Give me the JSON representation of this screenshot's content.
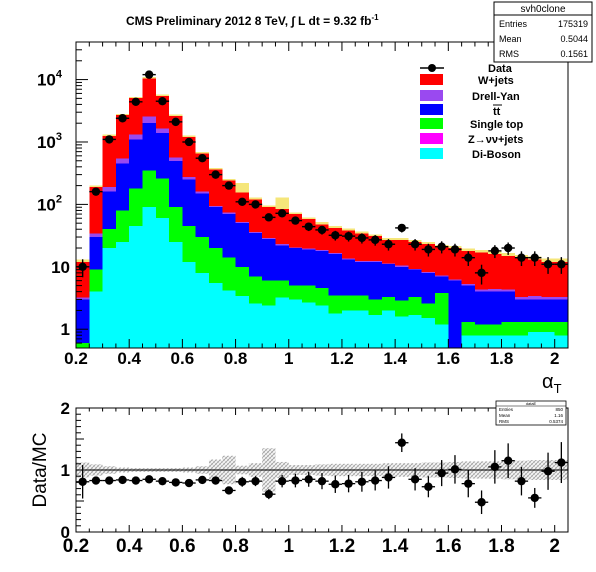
{
  "chart_data": [
    {
      "type": "stacked-histogram",
      "title": "CMS Preliminary 2012 8 TeV, ∫ L dt = 9.32 fb",
      "title_superscript": "-1",
      "xlabel": "α",
      "xlabel_subscript": "T",
      "ylabel": "",
      "xlim": [
        0.2,
        2.05
      ],
      "ylim": [
        0.5,
        40000
      ],
      "yscale": "log",
      "bin_width": 0.05,
      "x_ticks": [
        "0.2",
        "0.4",
        "0.6",
        "0.8",
        "1",
        "1.2",
        "1.4",
        "1.6",
        "1.8",
        "2"
      ],
      "y_ticks": [
        {
          "value": 1,
          "label": "1",
          "sup": ""
        },
        {
          "value": 10,
          "label": "10",
          "sup": ""
        },
        {
          "value": 100,
          "label": "10",
          "sup": "2"
        },
        {
          "value": 1000,
          "label": "10",
          "sup": "3"
        },
        {
          "value": 10000,
          "label": "10",
          "sup": "4"
        }
      ],
      "legend_position": "top-right",
      "legend": [
        {
          "label": "Data",
          "kind": "marker"
        },
        {
          "label": "W+jets",
          "color": "#ff0000"
        },
        {
          "label": "Drell-Yan",
          "color": "#9a49f0"
        },
        {
          "label": "tt",
          "color": "#0000ff"
        },
        {
          "label": "Single top",
          "color": "#00ff00"
        },
        {
          "label": "Z→νν+jets",
          "color": "#ff00ff"
        },
        {
          "label": "Di-Boson",
          "color": "#00ffff"
        }
      ],
      "bin_edges": [
        0.2,
        0.25,
        0.3,
        0.35,
        0.4,
        0.45,
        0.5,
        0.55,
        0.6,
        0.65,
        0.7,
        0.75,
        0.8,
        0.85,
        0.9,
        0.95,
        1.0,
        1.05,
        1.1,
        1.15,
        1.2,
        1.25,
        1.3,
        1.35,
        1.4,
        1.45,
        1.5,
        1.55,
        1.6,
        1.65,
        1.7,
        1.75,
        1.8,
        1.85,
        1.9,
        1.95,
        2.0,
        2.05
      ],
      "stack_cumulative": {
        "diboson": [
          0.5,
          4.0,
          20,
          25,
          45,
          90,
          60,
          25,
          12,
          8,
          5.5,
          4.2,
          3.4,
          2.6,
          2.4,
          3.2,
          3.0,
          2.7,
          2.4,
          1.8,
          2.0,
          2.0,
          1.7,
          2.0,
          1.6,
          1.7,
          1.5,
          1.2,
          0.5,
          0.8,
          0.8,
          0.8,
          0.8,
          0.8,
          0.9,
          0.9,
          0.8
        ],
        "singletop": [
          0.6,
          9,
          40,
          80,
          180,
          350,
          260,
          90,
          45,
          30,
          20,
          14,
          10,
          7,
          6,
          6,
          5,
          5,
          4.6,
          3.5,
          3.5,
          3.5,
          3.0,
          3.3,
          2.9,
          3.3,
          2.6,
          3.8,
          0.5,
          1.3,
          1.2,
          1.2,
          1.3,
          1.3,
          1.3,
          1.3,
          1.3
        ],
        "ttbar": [
          3,
          30,
          160,
          450,
          1100,
          2000,
          1400,
          500,
          250,
          150,
          90,
          70,
          50,
          35,
          28,
          22,
          20,
          19,
          18,
          16,
          13,
          12,
          12,
          11,
          10,
          9,
          8,
          7,
          6,
          5,
          4,
          4,
          4,
          3,
          3,
          3,
          3
        ],
        "drellyan": [
          3.2,
          34,
          190,
          540,
          1320,
          2550,
          1650,
          560,
          275,
          160,
          95,
          74,
          52,
          36,
          29,
          23,
          20.5,
          19.5,
          18.5,
          16.5,
          13.5,
          12.5,
          12.4,
          11.4,
          10.4,
          9.3,
          8.3,
          7.3,
          6.3,
          5.3,
          4.3,
          4.4,
          4.3,
          3.3,
          3.4,
          3.3,
          3.3
        ],
        "wjets": [
          12,
          190,
          1250,
          2700,
          5100,
          10500,
          5500,
          2600,
          1200,
          650,
          360,
          240,
          155,
          120,
          90,
          84,
          70,
          58,
          48,
          42,
          38,
          34,
          31,
          27,
          27,
          25,
          23,
          21,
          20,
          18,
          17,
          16,
          15,
          14,
          13,
          12,
          12
        ],
        "stat_upper": [
          13,
          200,
          1310,
          2820,
          5300,
          11000,
          5800,
          2750,
          1280,
          690,
          380,
          255,
          220,
          128,
          96,
          130,
          74,
          62,
          52,
          45,
          41,
          37,
          33,
          29,
          29,
          27,
          25,
          22.5,
          21.5,
          19.5,
          18.5,
          17.5,
          16.5,
          15.5,
          14.5,
          13.5,
          13.5
        ]
      },
      "data": {
        "x": [
          0.225,
          0.275,
          0.325,
          0.375,
          0.425,
          0.475,
          0.525,
          0.575,
          0.625,
          0.675,
          0.725,
          0.775,
          0.825,
          0.875,
          0.925,
          0.975,
          1.025,
          1.075,
          1.125,
          1.175,
          1.225,
          1.275,
          1.325,
          1.375,
          1.425,
          1.475,
          1.525,
          1.575,
          1.625,
          1.675,
          1.725,
          1.775,
          1.825,
          1.875,
          1.925,
          1.975,
          2.025
        ],
        "y": [
          10,
          160,
          1100,
          2400,
          4400,
          12000,
          4500,
          2100,
          1000,
          550,
          300,
          200,
          110,
          100,
          62,
          72,
          55,
          44,
          39,
          32,
          31,
          29,
          27,
          23,
          42,
          23,
          19,
          21,
          19,
          14,
          8,
          18,
          20,
          14,
          14,
          11,
          11
        ],
        "err": [
          3.2,
          12.6,
          33,
          49,
          66,
          110,
          67,
          46,
          32,
          23,
          17,
          14,
          10.5,
          10,
          7.9,
          8.5,
          7.4,
          6.6,
          6.2,
          5.7,
          5.6,
          5.4,
          5.2,
          4.8,
          6.5,
          4.8,
          4.4,
          4.6,
          4.4,
          3.7,
          2.8,
          4.2,
          4.5,
          3.7,
          3.7,
          3.3,
          3.3
        ]
      }
    },
    {
      "type": "scatter",
      "title": "",
      "xlabel": "",
      "ylabel": "Data/MC",
      "xlim": [
        0.2,
        2.05
      ],
      "ylim": [
        0,
        2
      ],
      "x_ticks": [
        "0.2",
        "0.4",
        "0.6",
        "0.8",
        "1",
        "1.2",
        "1.4",
        "1.6",
        "1.8",
        "2"
      ],
      "y_ticks": [
        "0",
        "1",
        "2"
      ],
      "reference_line": 1,
      "x": [
        0.225,
        0.275,
        0.325,
        0.375,
        0.425,
        0.475,
        0.525,
        0.575,
        0.625,
        0.675,
        0.725,
        0.775,
        0.825,
        0.875,
        0.925,
        0.975,
        1.025,
        1.075,
        1.125,
        1.175,
        1.225,
        1.275,
        1.325,
        1.375,
        1.425,
        1.475,
        1.525,
        1.575,
        1.625,
        1.675,
        1.725,
        1.775,
        1.825,
        1.875,
        1.925,
        1.975,
        2.025
      ],
      "y": [
        0.81,
        0.83,
        0.83,
        0.84,
        0.83,
        0.85,
        0.82,
        0.8,
        0.79,
        0.84,
        0.83,
        0.67,
        0.81,
        0.82,
        0.61,
        0.82,
        0.83,
        0.85,
        0.82,
        0.77,
        0.78,
        0.81,
        0.83,
        0.88,
        1.44,
        0.85,
        0.73,
        0.95,
        1.01,
        0.78,
        0.48,
        1.05,
        1.15,
        0.82,
        0.55,
        0.98,
        1.12
      ],
      "err": [
        0.27,
        0.06,
        0.03,
        0.03,
        0.02,
        0.02,
        0.02,
        0.02,
        0.03,
        0.03,
        0.05,
        0.05,
        0.08,
        0.08,
        0.08,
        0.1,
        0.11,
        0.12,
        0.13,
        0.14,
        0.14,
        0.16,
        0.16,
        0.18,
        0.15,
        0.18,
        0.17,
        0.21,
        0.23,
        0.22,
        0.19,
        0.27,
        0.28,
        0.23,
        0.16,
        0.3,
        0.33
      ],
      "band_halfwidth": [
        0.12,
        0.09,
        0.06,
        0.04,
        0.03,
        0.03,
        0.03,
        0.03,
        0.04,
        0.06,
        0.17,
        0.23,
        0.07,
        0.11,
        0.35,
        0.13,
        0.08,
        0.08,
        0.09,
        0.1,
        0.1,
        0.1,
        0.1,
        0.11,
        0.11,
        0.11,
        0.12,
        0.12,
        0.13,
        0.14,
        0.14,
        0.14,
        0.15,
        0.15,
        0.16,
        0.16,
        0.16
      ]
    }
  ],
  "stats_main": {
    "title": "svh0clone",
    "rows": [
      {
        "label": "Entries",
        "value": "175319"
      },
      {
        "label": "Mean",
        "value": "0.5044"
      },
      {
        "label": "RMS",
        "value": "0.1561"
      }
    ]
  },
  "stats_ratio": {
    "title": "dataE",
    "rows": [
      {
        "label": "Entries",
        "value": "850"
      },
      {
        "label": "Mean",
        "value": "1.16"
      },
      {
        "label": "RMS",
        "value": "0.5374"
      }
    ]
  },
  "colors": {
    "wjets": "#ff0000",
    "drellyan": "#9a49f0",
    "ttbar": "#0000ff",
    "singletop": "#00ff00",
    "znunu": "#ff00ff",
    "diboson": "#00ffff",
    "stat_band": "#f5e67a",
    "data": "#000000"
  }
}
